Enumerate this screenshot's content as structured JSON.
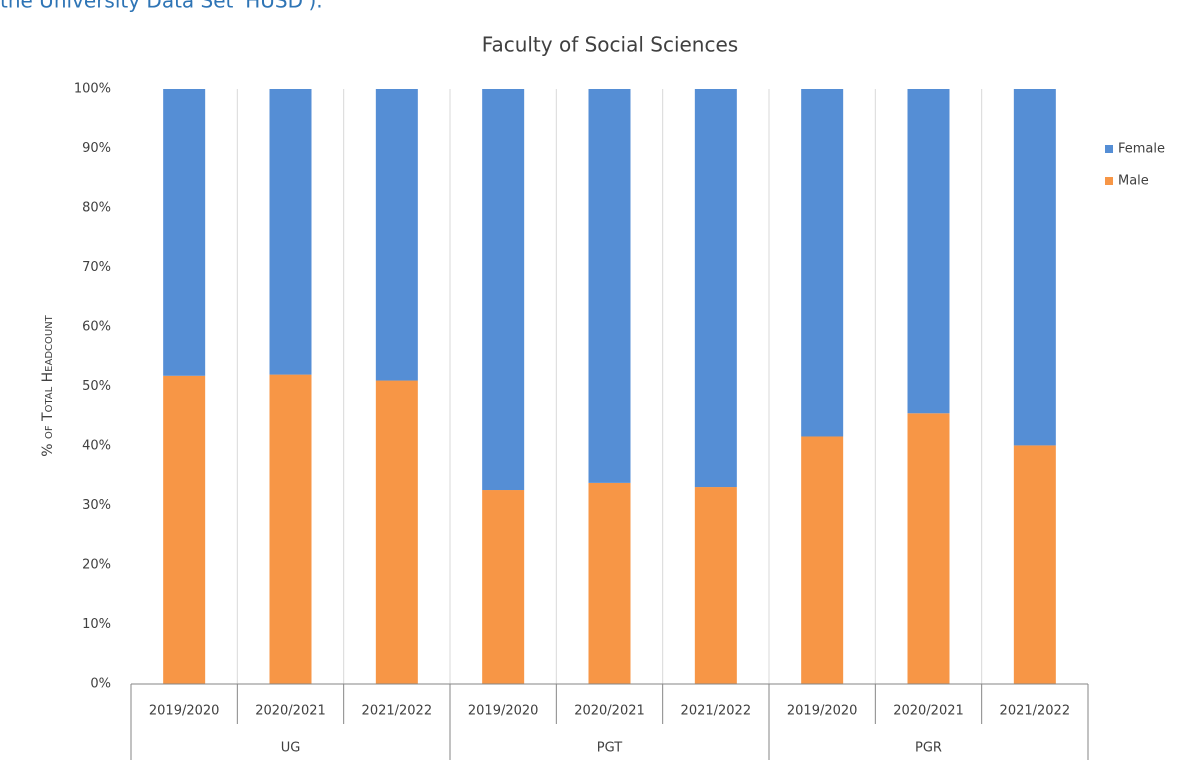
{
  "caption": "the University Data Set 'HUSD').",
  "chart_data": {
    "type": "stacked_bar",
    "title": "Faculty of Social Sciences",
    "y_label": "% of Total Headcount",
    "categories": [
      "2019/2020",
      "2020/2021",
      "2021/2022",
      "2019/2020",
      "2020/2021",
      "2021/2022",
      "2019/2020",
      "2020/2021",
      "2021/2022"
    ],
    "groups": [
      "UG",
      "PGT",
      "PGR"
    ],
    "series": [
      {
        "name": "Male",
        "color": "#f79646",
        "values": [
          51.8,
          52.0,
          51.0,
          32.6,
          33.8,
          33.1,
          41.6,
          45.5,
          40.1
        ]
      },
      {
        "name": "Female",
        "color": "#558ed5",
        "values": [
          48.2,
          48.0,
          49.0,
          67.4,
          66.2,
          66.9,
          58.4,
          54.5,
          59.9
        ]
      }
    ],
    "ylim": [
      0,
      100
    ],
    "yticks": [
      {
        "value": 0,
        "label": "0%"
      },
      {
        "value": 10,
        "label": "10%"
      },
      {
        "value": 20,
        "label": "20%"
      },
      {
        "value": 30,
        "label": "30%"
      },
      {
        "value": 40,
        "label": "40%"
      },
      {
        "value": 50,
        "label": "50%"
      },
      {
        "value": 60,
        "label": "60%"
      },
      {
        "value": 70,
        "label": "70%"
      },
      {
        "value": 80,
        "label": "80%"
      },
      {
        "value": 90,
        "label": "90%"
      },
      {
        "value": 100,
        "label": "100%"
      }
    ],
    "grid": true,
    "legend": "right"
  }
}
